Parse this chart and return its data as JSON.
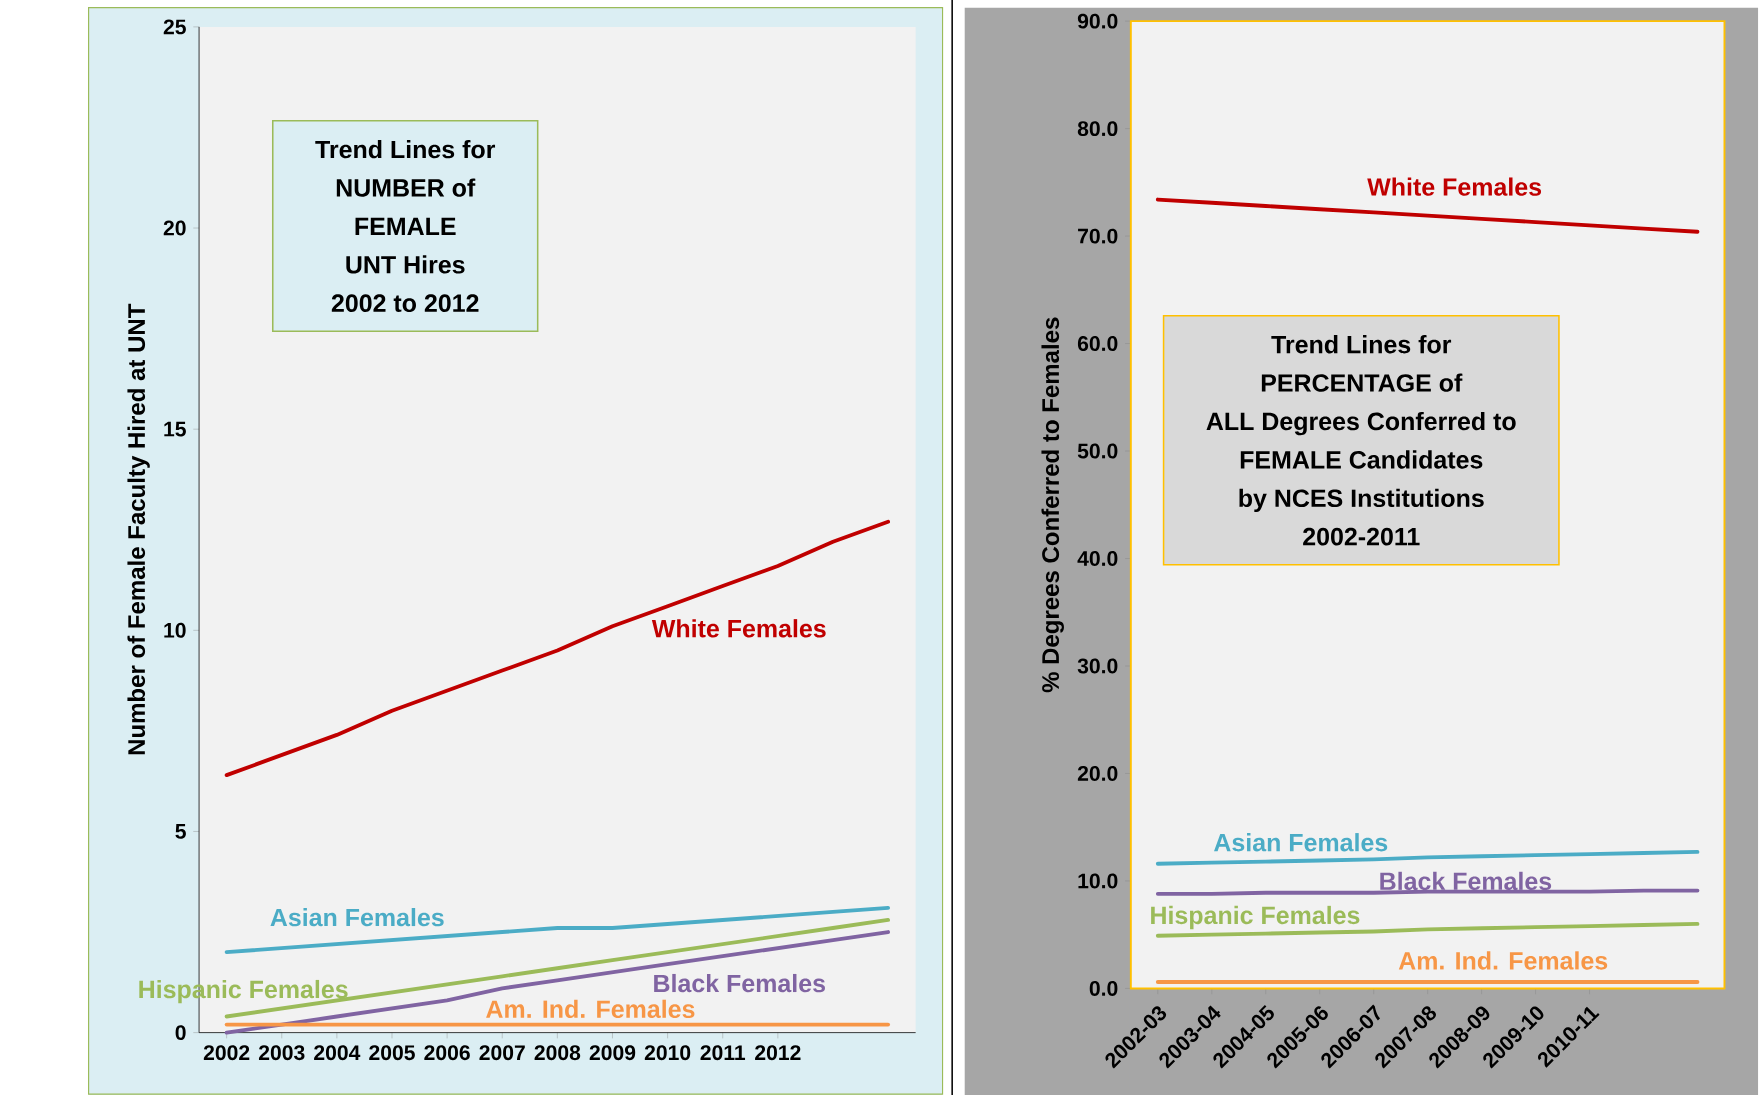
{
  "chart_data": [
    {
      "type": "line",
      "ylabel": "Number of Female Faculty Hired at UNT",
      "categories": [
        "2002",
        "2003",
        "2004",
        "2005",
        "2006",
        "2007",
        "2008",
        "2009",
        "2010",
        "2011",
        "2012",
        null,
        null
      ],
      "ylim": [
        0,
        25
      ],
      "yticks": [
        0,
        5,
        10,
        15,
        20,
        25
      ],
      "annotations": [
        "Trend Lines for",
        "NUMBER of",
        "FEMALE",
        "UNT Hires",
        "2002 to 2012"
      ],
      "series": [
        {
          "name": "White Females",
          "color": "#c00000",
          "values": [
            6.4,
            6.9,
            7.4,
            8.0,
            8.5,
            9.0,
            9.5,
            10.1,
            10.6,
            11.1,
            11.6,
            12.2,
            12.7
          ]
        },
        {
          "name": "Asian Females",
          "color": "#4bacc6",
          "values": [
            2.0,
            2.1,
            2.2,
            2.3,
            2.4,
            2.5,
            2.6,
            2.6,
            2.7,
            2.8,
            2.9,
            3.0,
            3.1
          ]
        },
        {
          "name": "Hispanic Females",
          "color": "#9bbb59",
          "values": [
            0.4,
            0.6,
            0.8,
            1.0,
            1.2,
            1.4,
            1.6,
            1.8,
            2.0,
            2.2,
            2.4,
            2.6,
            2.8
          ]
        },
        {
          "name": "Black Females",
          "color": "#8064a2",
          "values": [
            0.0,
            0.2,
            0.4,
            0.6,
            0.8,
            1.1,
            1.3,
            1.5,
            1.7,
            1.9,
            2.1,
            2.3,
            2.5
          ]
        },
        {
          "name": "Am. Ind. Females",
          "color": "#f79646",
          "values": [
            0.2,
            0.2,
            0.2,
            0.2,
            0.2,
            0.2,
            0.2,
            0.2,
            0.2,
            0.2,
            0.2,
            0.2,
            0.2
          ]
        }
      ]
    },
    {
      "type": "line",
      "ylabel": "% Degrees Conferred to Females",
      "categories": [
        "2002-03",
        "2003-04",
        "2004-05",
        "2005-06",
        "2006-07",
        "2007-08",
        "2008-09",
        "2009-10",
        "2010-11",
        null,
        null
      ],
      "ylim": [
        0,
        90
      ],
      "yticks": [
        {
          "value": 0,
          "label": "0.0"
        },
        {
          "value": 10,
          "label": "10.0"
        },
        {
          "value": 20,
          "label": "20.0"
        },
        {
          "value": 30,
          "label": "30.0"
        },
        {
          "value": 40,
          "label": "40.0"
        },
        {
          "value": 50,
          "label": "50.0"
        },
        {
          "value": 60,
          "label": "60.0"
        },
        {
          "value": 70,
          "label": "70.0"
        },
        {
          "value": 80,
          "label": "80.0"
        },
        {
          "value": 90,
          "label": "90.0"
        }
      ],
      "annotations": [
        "Trend Lines for",
        "PERCENTAGE of",
        "ALL Degrees Conferred to",
        "FEMALE Candidates",
        "by NCES Institutions",
        "2002-2011"
      ],
      "series": [
        {
          "name": "White Females",
          "color": "#c00000",
          "values": [
            73.4,
            73.1,
            72.8,
            72.5,
            72.2,
            71.9,
            71.6,
            71.3,
            71.0,
            70.7,
            70.4
          ]
        },
        {
          "name": "Asian Females",
          "color": "#4bacc6",
          "values": [
            11.6,
            11.7,
            11.8,
            11.9,
            12.0,
            12.2,
            12.3,
            12.4,
            12.5,
            12.6,
            12.7
          ]
        },
        {
          "name": "Hispanic Females",
          "color": "#9bbb59",
          "values": [
            4.9,
            5.0,
            5.1,
            5.2,
            5.3,
            5.5,
            5.6,
            5.7,
            5.8,
            5.9,
            6.0
          ]
        },
        {
          "name": "Black Females",
          "color": "#8064a2",
          "values": [
            8.8,
            8.8,
            8.9,
            8.9,
            8.9,
            9.0,
            9.0,
            9.0,
            9.0,
            9.1,
            9.1
          ]
        },
        {
          "name": "Am. Ind. Females",
          "color": "#f79646",
          "values": [
            0.6,
            0.6,
            0.6,
            0.6,
            0.6,
            0.6,
            0.6,
            0.6,
            0.6,
            0.6,
            0.6
          ]
        }
      ]
    }
  ]
}
